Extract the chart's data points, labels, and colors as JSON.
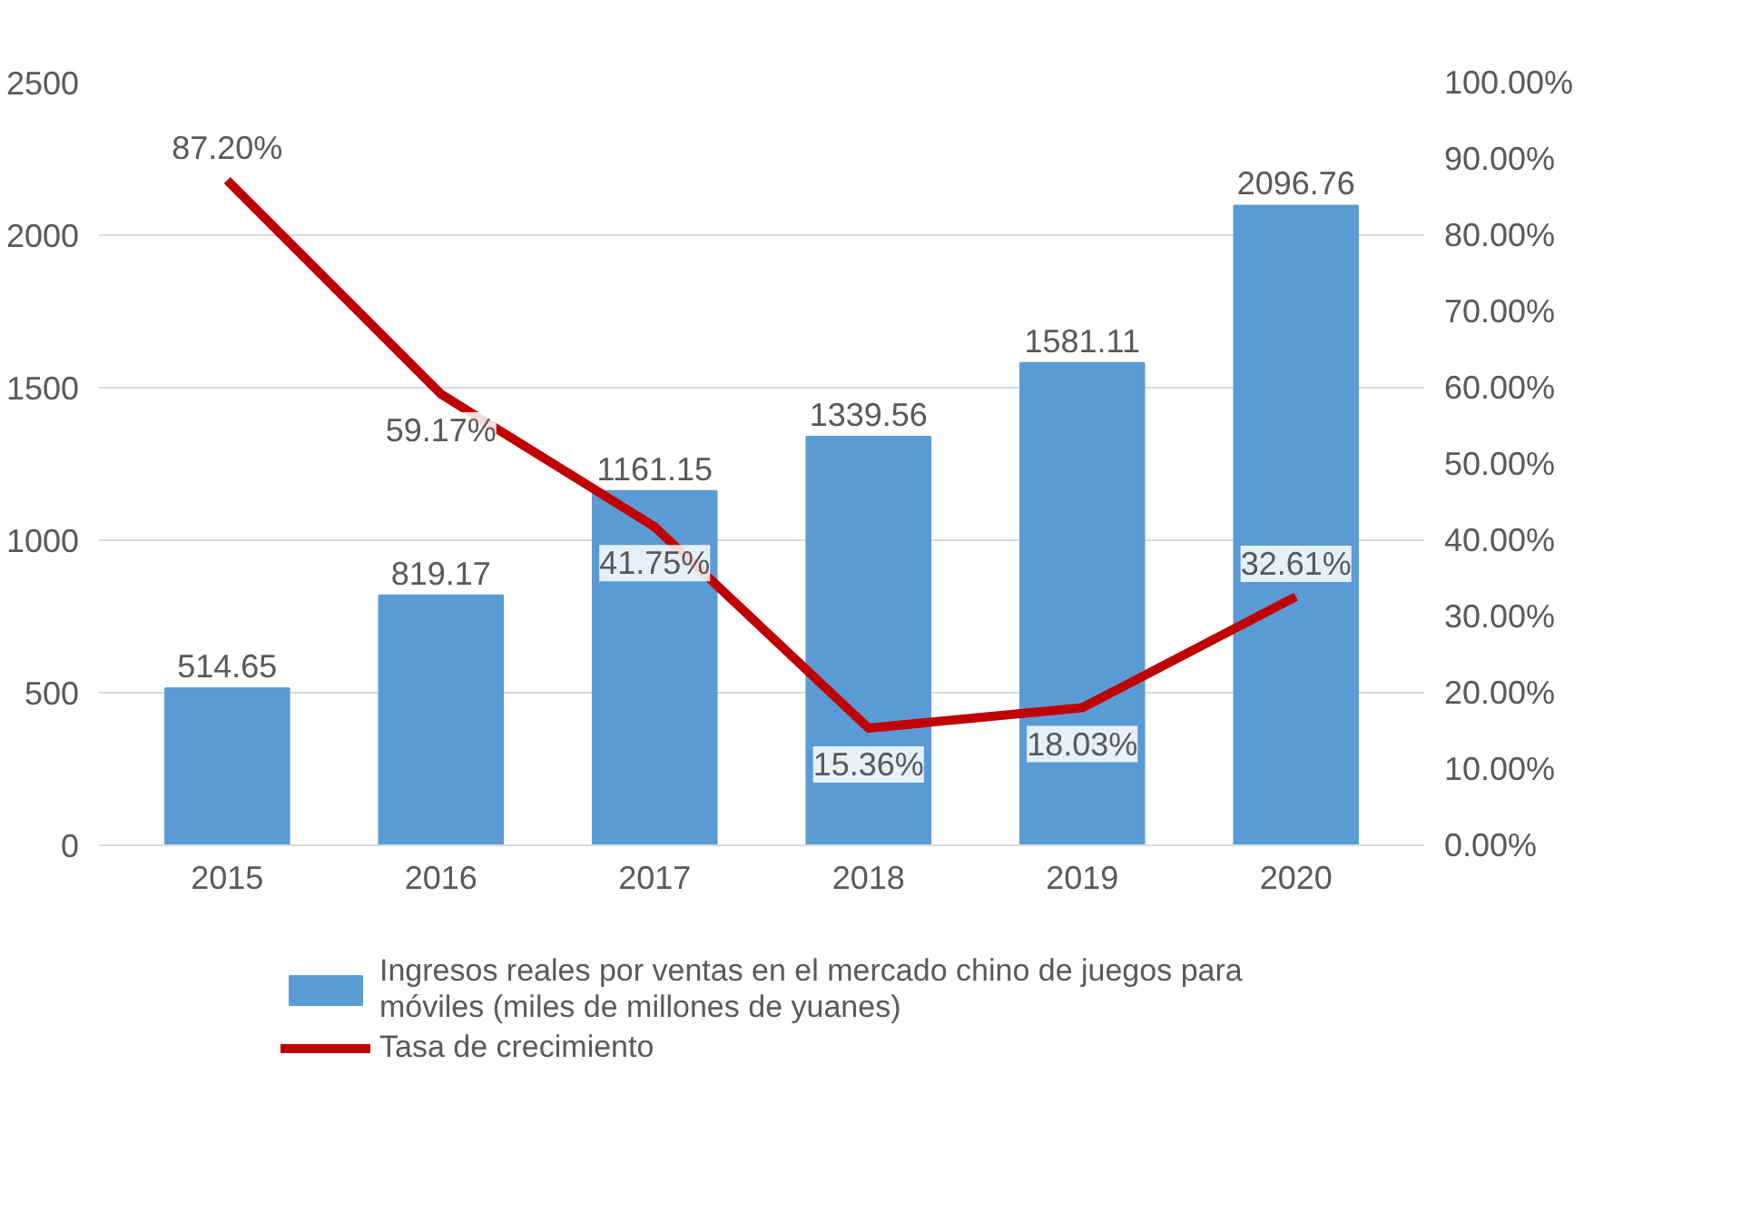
{
  "chart_data": {
    "type": "bar",
    "categories": [
      "2015",
      "2016",
      "2017",
      "2018",
      "2019",
      "2020"
    ],
    "series": [
      {
        "name": "Ingresos reales por ventas en el mercado chino de juegos para móviles (miles de millones de yuanes)",
        "color": "#5b9bd5",
        "values": [
          514.65,
          819.17,
          1161.15,
          1339.56,
          1581.11,
          2096.76
        ],
        "value_labels": [
          "514.65",
          "819.17",
          "1161.15",
          "1339.56",
          "1581.11",
          "2096.76"
        ]
      },
      {
        "name": "Tasa de crecimiento",
        "type": "line",
        "axis": "y2",
        "color": "#c00000",
        "values": [
          87.2,
          59.17,
          41.75,
          15.36,
          18.03,
          32.61
        ],
        "value_labels": [
          "87.20%",
          "59.17%",
          "41.75%",
          "15.36%",
          "18.03%",
          "32.61%"
        ]
      }
    ],
    "ylim": [
      0,
      2500
    ],
    "yticks": [
      0,
      500,
      1000,
      1500,
      2000,
      2500
    ],
    "y2lim": [
      0,
      100
    ],
    "y2ticks": [
      {
        "value": 0,
        "label": "0.00%"
      },
      {
        "value": 10,
        "label": "10.00%"
      },
      {
        "value": 20,
        "label": "20.00%"
      },
      {
        "value": 30,
        "label": "30.00%"
      },
      {
        "value": 40,
        "label": "40.00%"
      },
      {
        "value": 50,
        "label": "50.00%"
      },
      {
        "value": 60,
        "label": "60.00%"
      },
      {
        "value": 70,
        "label": "70.00%"
      },
      {
        "value": 80,
        "label": "80.00%"
      },
      {
        "value": 90,
        "label": "90.00%"
      },
      {
        "value": 100,
        "label": "100.00%"
      }
    ],
    "grid": "y",
    "legend": "bottom",
    "marker": "none"
  }
}
